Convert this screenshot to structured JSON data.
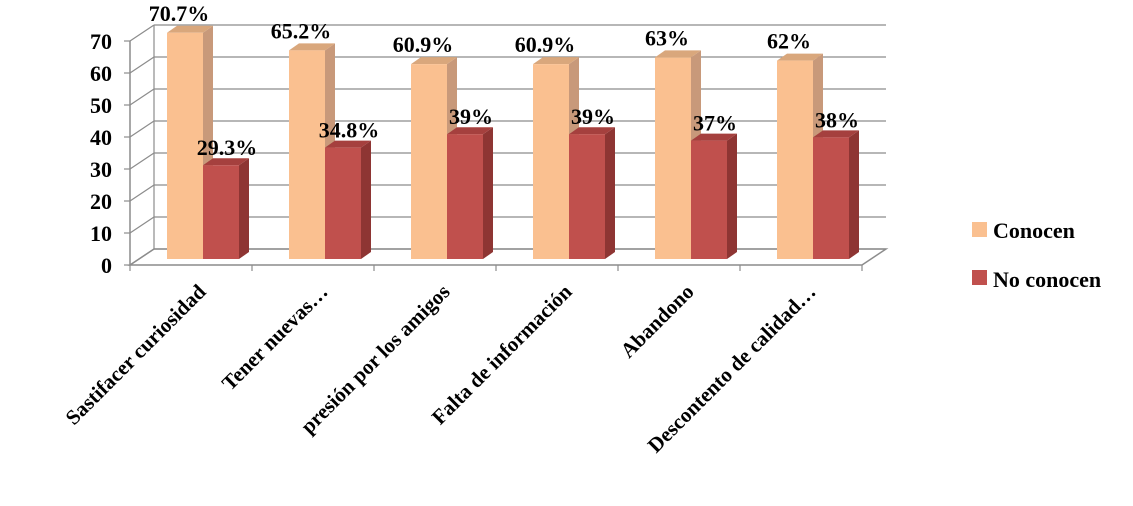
{
  "chart_data": {
    "type": "bar",
    "categories": [
      "Sastifacer curiosidad",
      "Tener nuevas…",
      "presión  por los amigos",
      "Falta de información",
      "Abandono",
      "Descontento de calidad…"
    ],
    "series": [
      {
        "name": "Conocen",
        "values": [
          70.7,
          65.2,
          60.9,
          60.9,
          63,
          62
        ],
        "labels": [
          "70.7%",
          "65.2%",
          "60.9%",
          "60.9%",
          "63%",
          "62%"
        ],
        "color": "#FAC090",
        "side_color": "#C8997A",
        "top_color": "#D9A77C"
      },
      {
        "name": "No conocen",
        "values": [
          29.3,
          34.8,
          39,
          39,
          37,
          38
        ],
        "labels": [
          "29.3%",
          "34.8%",
          "39%",
          "39%",
          "37%",
          "38%"
        ],
        "color": "#C0504D",
        "side_color": "#8E3533",
        "top_color": "#A5403E"
      }
    ],
    "yticks": [
      "0",
      "10",
      "20",
      "30",
      "40",
      "50",
      "60",
      "70"
    ],
    "ylim": [
      0,
      70
    ],
    "grid": true,
    "legend_position": "right",
    "projection": "3d"
  }
}
